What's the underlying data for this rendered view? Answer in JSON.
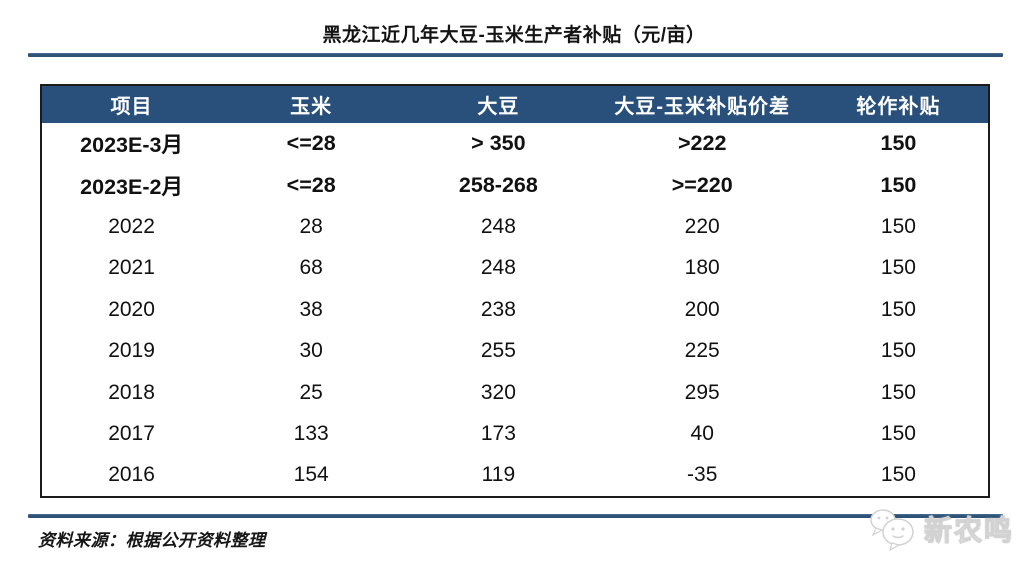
{
  "title": "黑龙江近几年大豆-玉米生产者补贴（元/亩）",
  "source": "资料来源：根据公开资料整理",
  "watermark": {
    "text": "新农鸣",
    "icon": "chat-bubbles-icon"
  },
  "colors": {
    "header_bg": "#29507A",
    "header_text": "#FFFFFF",
    "rule": "#2E5275",
    "border": "#1B1B1B",
    "text": "#111111"
  },
  "chart_data": {
    "type": "table",
    "title": "黑龙江近几年大豆-玉米生产者补贴（元/亩）",
    "columns": [
      "项目",
      "玉米",
      "大豆",
      "大豆-玉米补贴价差",
      "轮作补贴"
    ],
    "rows": [
      [
        "2023E-3月",
        "<=28",
        "> 350",
        ">222",
        "150"
      ],
      [
        "2023E-2月",
        "<=28",
        "258-268",
        ">=220",
        "150"
      ],
      [
        "2022",
        "28",
        "248",
        "220",
        "150"
      ],
      [
        "2021",
        "68",
        "248",
        "180",
        "150"
      ],
      [
        "2020",
        "38",
        "238",
        "200",
        "150"
      ],
      [
        "2019",
        "30",
        "255",
        "225",
        "150"
      ],
      [
        "2018",
        "25",
        "320",
        "295",
        "150"
      ],
      [
        "2017",
        "133",
        "173",
        "40",
        "150"
      ],
      [
        "2016",
        "154",
        "119",
        "-35",
        "150"
      ]
    ],
    "bold_rows": [
      0,
      1
    ],
    "column_widths_pct": [
      19,
      19,
      20.5,
      22.5,
      19
    ],
    "source": "资料来源：根据公开资料整理"
  }
}
